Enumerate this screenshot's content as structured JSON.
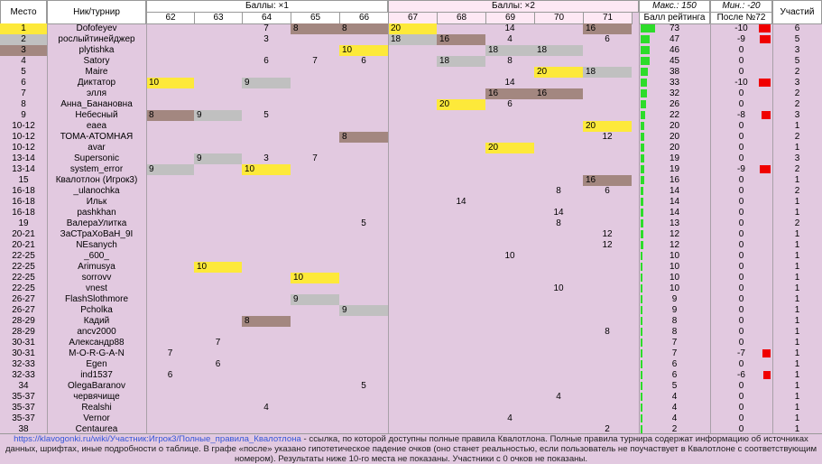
{
  "headers": {
    "place": "Место",
    "nick": "Ник/турнир",
    "group1": "Баллы: ×1",
    "group2": "Баллы: ×2",
    "max": "Макс.: 150",
    "rating": "Балл рейтинга",
    "min": "Мин.: -20",
    "after": "После №72",
    "count": "Участий"
  },
  "tournaments": [
    "62",
    "63",
    "64",
    "65",
    "66",
    "67",
    "68",
    "69",
    "70",
    "71"
  ],
  "colors": {
    "gold": "#fde93a",
    "silver": "#c0c0c0",
    "bronze": "#a38780",
    "bar_green": "#2ddc2a",
    "bar_red": "#f00000",
    "bg": "#e2c9e0"
  },
  "rows": [
    {
      "place": "1",
      "nick": "Dofofeyev",
      "scores": [
        "",
        "",
        "7",
        "8",
        "8",
        "20",
        "",
        "14",
        "",
        "16"
      ],
      "medals": [
        "",
        "",
        "",
        "b",
        "b",
        "g",
        "",
        "",
        "",
        "b"
      ],
      "rating": "73",
      "after": "-10",
      "count": "6"
    },
    {
      "place": "2",
      "nick": "рослыйтинейджер",
      "scores": [
        "",
        "",
        "3",
        "",
        "",
        "18",
        "16",
        "4",
        "",
        "6"
      ],
      "medals": [
        "",
        "",
        "",
        "",
        "",
        "s",
        "b",
        "",
        "",
        ""
      ],
      "rating": "47",
      "after": "-9",
      "count": "5"
    },
    {
      "place": "3",
      "nick": "plytishka",
      "scores": [
        "",
        "",
        "",
        "",
        "10",
        "",
        "",
        "18",
        "18",
        ""
      ],
      "medals": [
        "",
        "",
        "",
        "",
        "g",
        "",
        "",
        "s",
        "s",
        ""
      ],
      "rating": "46",
      "after": "0",
      "count": "3"
    },
    {
      "place": "4",
      "nick": "Satory",
      "scores": [
        "",
        "",
        "6",
        "7",
        "6",
        "",
        "18",
        "8",
        "",
        ""
      ],
      "medals": [
        "",
        "",
        "",
        "",
        "",
        "",
        "s",
        "",
        "",
        ""
      ],
      "rating": "45",
      "after": "0",
      "count": "5"
    },
    {
      "place": "5",
      "nick": "Maire",
      "scores": [
        "",
        "",
        "",
        "",
        "",
        "",
        "",
        "",
        "20",
        "18"
      ],
      "medals": [
        "",
        "",
        "",
        "",
        "",
        "",
        "",
        "",
        "g",
        "s"
      ],
      "rating": "38",
      "after": "0",
      "count": "2"
    },
    {
      "place": "6",
      "nick": "Диктатор",
      "scores": [
        "10",
        "",
        "9",
        "",
        "",
        "",
        "",
        "14",
        "",
        ""
      ],
      "medals": [
        "g",
        "",
        "s",
        "",
        "",
        "",
        "",
        "",
        "",
        ""
      ],
      "rating": "33",
      "after": "-10",
      "count": "3"
    },
    {
      "place": "7",
      "nick": "элля",
      "scores": [
        "",
        "",
        "",
        "",
        "",
        "",
        "",
        "16",
        "16",
        ""
      ],
      "medals": [
        "",
        "",
        "",
        "",
        "",
        "",
        "",
        "b",
        "b",
        ""
      ],
      "rating": "32",
      "after": "0",
      "count": "2"
    },
    {
      "place": "8",
      "nick": "Анна_Банановна",
      "scores": [
        "",
        "",
        "",
        "",
        "",
        "",
        "20",
        "6",
        "",
        ""
      ],
      "medals": [
        "",
        "",
        "",
        "",
        "",
        "",
        "g",
        "",
        "",
        ""
      ],
      "rating": "26",
      "after": "0",
      "count": "2"
    },
    {
      "place": "9",
      "nick": "Небесный",
      "scores": [
        "8",
        "9",
        "5",
        "",
        "",
        "",
        "",
        "",
        "",
        ""
      ],
      "medals": [
        "b",
        "s",
        "",
        "",
        "",
        "",
        "",
        "",
        "",
        ""
      ],
      "rating": "22",
      "after": "-8",
      "count": "3"
    },
    {
      "place": "10-12",
      "nick": "eaea",
      "scores": [
        "",
        "",
        "",
        "",
        "",
        "",
        "",
        "",
        "",
        "20"
      ],
      "medals": [
        "",
        "",
        "",
        "",
        "",
        "",
        "",
        "",
        "",
        "g"
      ],
      "rating": "20",
      "after": "0",
      "count": "1"
    },
    {
      "place": "10-12",
      "nick": "ТОМА-АТОМНАЯ",
      "scores": [
        "",
        "",
        "",
        "",
        "8",
        "",
        "",
        "",
        "",
        "12"
      ],
      "medals": [
        "",
        "",
        "",
        "",
        "b",
        "",
        "",
        "",
        "",
        ""
      ],
      "rating": "20",
      "after": "0",
      "count": "2"
    },
    {
      "place": "10-12",
      "nick": "avar",
      "scores": [
        "",
        "",
        "",
        "",
        "",
        "",
        "",
        "20",
        "",
        ""
      ],
      "medals": [
        "",
        "",
        "",
        "",
        "",
        "",
        "",
        "g",
        "",
        ""
      ],
      "rating": "20",
      "after": "0",
      "count": "1"
    },
    {
      "place": "13-14",
      "nick": "Supersonic",
      "scores": [
        "",
        "9",
        "3",
        "7",
        "",
        "",
        "",
        "",
        "",
        ""
      ],
      "medals": [
        "",
        "s",
        "",
        "",
        "",
        "",
        "",
        "",
        "",
        ""
      ],
      "rating": "19",
      "after": "0",
      "count": "3"
    },
    {
      "place": "13-14",
      "nick": "system_error",
      "scores": [
        "9",
        "",
        "10",
        "",
        "",
        "",
        "",
        "",
        "",
        ""
      ],
      "medals": [
        "s",
        "",
        "g",
        "",
        "",
        "",
        "",
        "",
        "",
        ""
      ],
      "rating": "19",
      "after": "-9",
      "count": "2"
    },
    {
      "place": "15",
      "nick": "Квалотлон (Игрок3)",
      "scores": [
        "",
        "",
        "",
        "",
        "",
        "",
        "",
        "",
        "",
        "16"
      ],
      "medals": [
        "",
        "",
        "",
        "",
        "",
        "",
        "",
        "",
        "",
        "b"
      ],
      "rating": "16",
      "after": "0",
      "count": "1"
    },
    {
      "place": "16-18",
      "nick": "_ulanochka",
      "scores": [
        "",
        "",
        "",
        "",
        "",
        "",
        "",
        "",
        "8",
        "6"
      ],
      "medals": [
        "",
        "",
        "",
        "",
        "",
        "",
        "",
        "",
        "",
        ""
      ],
      "rating": "14",
      "after": "0",
      "count": "2"
    },
    {
      "place": "16-18",
      "nick": "Ильк",
      "scores": [
        "",
        "",
        "",
        "",
        "",
        "",
        "14",
        "",
        "",
        ""
      ],
      "medals": [
        "",
        "",
        "",
        "",
        "",
        "",
        "",
        "",
        "",
        ""
      ],
      "rating": "14",
      "after": "0",
      "count": "1"
    },
    {
      "place": "16-18",
      "nick": "pashkhan",
      "scores": [
        "",
        "",
        "",
        "",
        "",
        "",
        "",
        "",
        "14",
        ""
      ],
      "medals": [
        "",
        "",
        "",
        "",
        "",
        "",
        "",
        "",
        "",
        ""
      ],
      "rating": "14",
      "after": "0",
      "count": "1"
    },
    {
      "place": "19",
      "nick": "ВалераУлитка",
      "scores": [
        "",
        "",
        "",
        "",
        "5",
        "",
        "",
        "",
        "8",
        ""
      ],
      "medals": [
        "",
        "",
        "",
        "",
        "",
        "",
        "",
        "",
        "",
        ""
      ],
      "rating": "13",
      "after": "0",
      "count": "2"
    },
    {
      "place": "20-21",
      "nick": "ЗаСТраХоВаН_9I",
      "scores": [
        "",
        "",
        "",
        "",
        "",
        "",
        "",
        "",
        "",
        "12"
      ],
      "medals": [
        "",
        "",
        "",
        "",
        "",
        "",
        "",
        "",
        "",
        ""
      ],
      "rating": "12",
      "after": "0",
      "count": "1"
    },
    {
      "place": "20-21",
      "nick": "NEsanych",
      "scores": [
        "",
        "",
        "",
        "",
        "",
        "",
        "",
        "",
        "",
        "12"
      ],
      "medals": [
        "",
        "",
        "",
        "",
        "",
        "",
        "",
        "",
        "",
        ""
      ],
      "rating": "12",
      "after": "0",
      "count": "1"
    },
    {
      "place": "22-25",
      "nick": "_600_",
      "scores": [
        "",
        "",
        "",
        "",
        "",
        "",
        "",
        "10",
        "",
        ""
      ],
      "medals": [
        "",
        "",
        "",
        "",
        "",
        "",
        "",
        "",
        "",
        ""
      ],
      "rating": "10",
      "after": "0",
      "count": "1"
    },
    {
      "place": "22-25",
      "nick": "Arimusya",
      "scores": [
        "",
        "10",
        "",
        "",
        "",
        "",
        "",
        "",
        "",
        ""
      ],
      "medals": [
        "",
        "g",
        "",
        "",
        "",
        "",
        "",
        "",
        "",
        ""
      ],
      "rating": "10",
      "after": "0",
      "count": "1"
    },
    {
      "place": "22-25",
      "nick": "sorrovv",
      "scores": [
        "",
        "",
        "",
        "10",
        "",
        "",
        "",
        "",
        "",
        ""
      ],
      "medals": [
        "",
        "",
        "",
        "g",
        "",
        "",
        "",
        "",
        "",
        ""
      ],
      "rating": "10",
      "after": "0",
      "count": "1"
    },
    {
      "place": "22-25",
      "nick": "vnest",
      "scores": [
        "",
        "",
        "",
        "",
        "",
        "",
        "",
        "",
        "10",
        ""
      ],
      "medals": [
        "",
        "",
        "",
        "",
        "",
        "",
        "",
        "",
        "",
        ""
      ],
      "rating": "10",
      "after": "0",
      "count": "1"
    },
    {
      "place": "26-27",
      "nick": "FlashSlothmore",
      "scores": [
        "",
        "",
        "",
        "9",
        "",
        "",
        "",
        "",
        "",
        ""
      ],
      "medals": [
        "",
        "",
        "",
        "s",
        "",
        "",
        "",
        "",
        "",
        ""
      ],
      "rating": "9",
      "after": "0",
      "count": "1"
    },
    {
      "place": "26-27",
      "nick": "Pcholka",
      "scores": [
        "",
        "",
        "",
        "",
        "9",
        "",
        "",
        "",
        "",
        ""
      ],
      "medals": [
        "",
        "",
        "",
        "",
        "s",
        "",
        "",
        "",
        "",
        ""
      ],
      "rating": "9",
      "after": "0",
      "count": "1"
    },
    {
      "place": "28-29",
      "nick": "Кадий",
      "scores": [
        "",
        "",
        "8",
        "",
        "",
        "",
        "",
        "",
        "",
        ""
      ],
      "medals": [
        "",
        "",
        "b",
        "",
        "",
        "",
        "",
        "",
        "",
        ""
      ],
      "rating": "8",
      "after": "0",
      "count": "1"
    },
    {
      "place": "28-29",
      "nick": "ancv2000",
      "scores": [
        "",
        "",
        "",
        "",
        "",
        "",
        "",
        "",
        "",
        "8"
      ],
      "medals": [
        "",
        "",
        "",
        "",
        "",
        "",
        "",
        "",
        "",
        ""
      ],
      "rating": "8",
      "after": "0",
      "count": "1"
    },
    {
      "place": "30-31",
      "nick": "Александр88",
      "scores": [
        "",
        "7",
        "",
        "",
        "",
        "",
        "",
        "",
        "",
        ""
      ],
      "medals": [
        "",
        "",
        "",
        "",
        "",
        "",
        "",
        "",
        "",
        ""
      ],
      "rating": "7",
      "after": "0",
      "count": "1"
    },
    {
      "place": "30-31",
      "nick": "M-O-R-G-A-N",
      "scores": [
        "7",
        "",
        "",
        "",
        "",
        "",
        "",
        "",
        "",
        ""
      ],
      "medals": [
        "",
        "",
        "",
        "",
        "",
        "",
        "",
        "",
        "",
        ""
      ],
      "rating": "7",
      "after": "-7",
      "count": "1"
    },
    {
      "place": "32-33",
      "nick": "Egen",
      "scores": [
        "",
        "6",
        "",
        "",
        "",
        "",
        "",
        "",
        "",
        ""
      ],
      "medals": [
        "",
        "",
        "",
        "",
        "",
        "",
        "",
        "",
        "",
        ""
      ],
      "rating": "6",
      "after": "0",
      "count": "1"
    },
    {
      "place": "32-33",
      "nick": "ind1537",
      "scores": [
        "6",
        "",
        "",
        "",
        "",
        "",
        "",
        "",
        "",
        ""
      ],
      "medals": [
        "",
        "",
        "",
        "",
        "",
        "",
        "",
        "",
        "",
        ""
      ],
      "rating": "6",
      "after": "-6",
      "count": "1"
    },
    {
      "place": "34",
      "nick": "OlegaBaranov",
      "scores": [
        "",
        "",
        "",
        "",
        "5",
        "",
        "",
        "",
        "",
        ""
      ],
      "medals": [
        "",
        "",
        "",
        "",
        "",
        "",
        "",
        "",
        "",
        ""
      ],
      "rating": "5",
      "after": "0",
      "count": "1"
    },
    {
      "place": "35-37",
      "nick": "червячище",
      "scores": [
        "",
        "",
        "",
        "",
        "",
        "",
        "",
        "",
        "4",
        ""
      ],
      "medals": [
        "",
        "",
        "",
        "",
        "",
        "",
        "",
        "",
        "",
        ""
      ],
      "rating": "4",
      "after": "0",
      "count": "1"
    },
    {
      "place": "35-37",
      "nick": "Realshi",
      "scores": [
        "",
        "",
        "4",
        "",
        "",
        "",
        "",
        "",
        "",
        ""
      ],
      "medals": [
        "",
        "",
        "",
        "",
        "",
        "",
        "",
        "",
        "",
        ""
      ],
      "rating": "4",
      "after": "0",
      "count": "1"
    },
    {
      "place": "35-37",
      "nick": "Vernor",
      "scores": [
        "",
        "",
        "",
        "",
        "",
        "",
        "",
        "4",
        "",
        ""
      ],
      "medals": [
        "",
        "",
        "",
        "",
        "",
        "",
        "",
        "",
        "",
        ""
      ],
      "rating": "4",
      "after": "0",
      "count": "1"
    },
    {
      "place": "38",
      "nick": "Centaurea",
      "scores": [
        "",
        "",
        "",
        "",
        "",
        "",
        "",
        "",
        "",
        "2"
      ],
      "medals": [
        "",
        "",
        "",
        "",
        "",
        "",
        "",
        "",
        "",
        ""
      ],
      "rating": "2",
      "after": "0",
      "count": "1"
    }
  ],
  "footer": {
    "link": "https://klavogonki.ru/wiki/Участник:Игрок3/Полные_правила_Квалотлона",
    "text": " - ссылка, по которой доступны полные правила Квалотлона. Полные правила турнира содержат информацию об источниках данных, шрифтах, иные подробности о таблице. В графе «после» указано гипотетическое падение очков (оно станет реальностью, если пользователь не поучаствует в Квалотлоне с соответствующим номером). Результаты ниже 10-го места не показаны. Участники с 0 очков не показаны."
  }
}
